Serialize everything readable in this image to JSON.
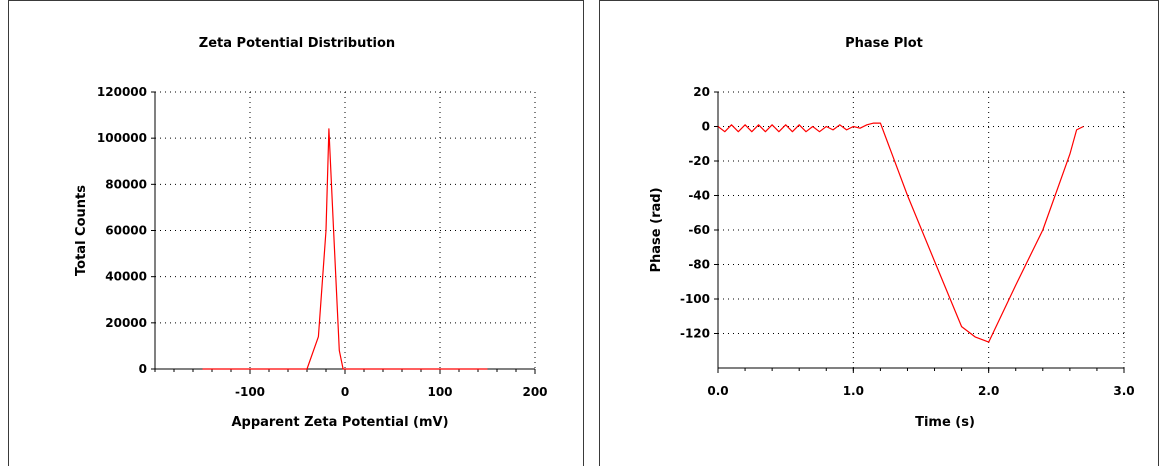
{
  "chart_data": [
    {
      "type": "line",
      "title": "Zeta Potential Distribution",
      "xlabel": "Apparent Zeta Potential (mV)",
      "ylabel": "Total Counts",
      "xlim": [
        -200,
        200
      ],
      "ylim": [
        0,
        120000
      ],
      "xticks": [
        -100,
        0,
        100,
        200
      ],
      "yticks": [
        0,
        20000,
        40000,
        60000,
        80000,
        100000,
        120000
      ],
      "grid": true,
      "line_color": "#ff0000",
      "series": [
        {
          "x": [
            -150,
            -40,
            -28,
            -20,
            -17,
            -12,
            -6,
            -2,
            150
          ],
          "y": [
            0,
            0,
            14000,
            60000,
            104000,
            60000,
            8000,
            0,
            0
          ]
        }
      ]
    },
    {
      "type": "line",
      "title": "Phase Plot",
      "xlabel": "Time (s)",
      "ylabel": "Phase (rad)",
      "xlim": [
        0.0,
        3.0
      ],
      "ylim": [
        -140,
        20
      ],
      "xticks": [
        "0.0",
        "1.0",
        "2.0",
        "3.0"
      ],
      "yticks": [
        20,
        0,
        -20,
        -40,
        -60,
        -80,
        -100,
        -120
      ],
      "grid": true,
      "line_color": "#ff0000",
      "series": [
        {
          "x": [
            0.0,
            0.05,
            0.1,
            0.15,
            0.2,
            0.25,
            0.3,
            0.35,
            0.4,
            0.45,
            0.5,
            0.55,
            0.6,
            0.65,
            0.7,
            0.75,
            0.8,
            0.85,
            0.9,
            0.95,
            1.0,
            1.05,
            1.1,
            1.15,
            1.2,
            1.4,
            1.6,
            1.8,
            1.9,
            2.0,
            2.2,
            2.4,
            2.6,
            2.65,
            2.7
          ],
          "y": [
            0,
            -3,
            1,
            -3,
            1,
            -3,
            1,
            -3,
            1,
            -3,
            1,
            -3,
            1,
            -3,
            0,
            -3,
            0,
            -2,
            1,
            -2,
            0,
            -1,
            1,
            2,
            2,
            -40,
            -78,
            -116,
            -122,
            -125,
            -92,
            -60,
            -16,
            -2,
            0
          ]
        }
      ]
    }
  ]
}
